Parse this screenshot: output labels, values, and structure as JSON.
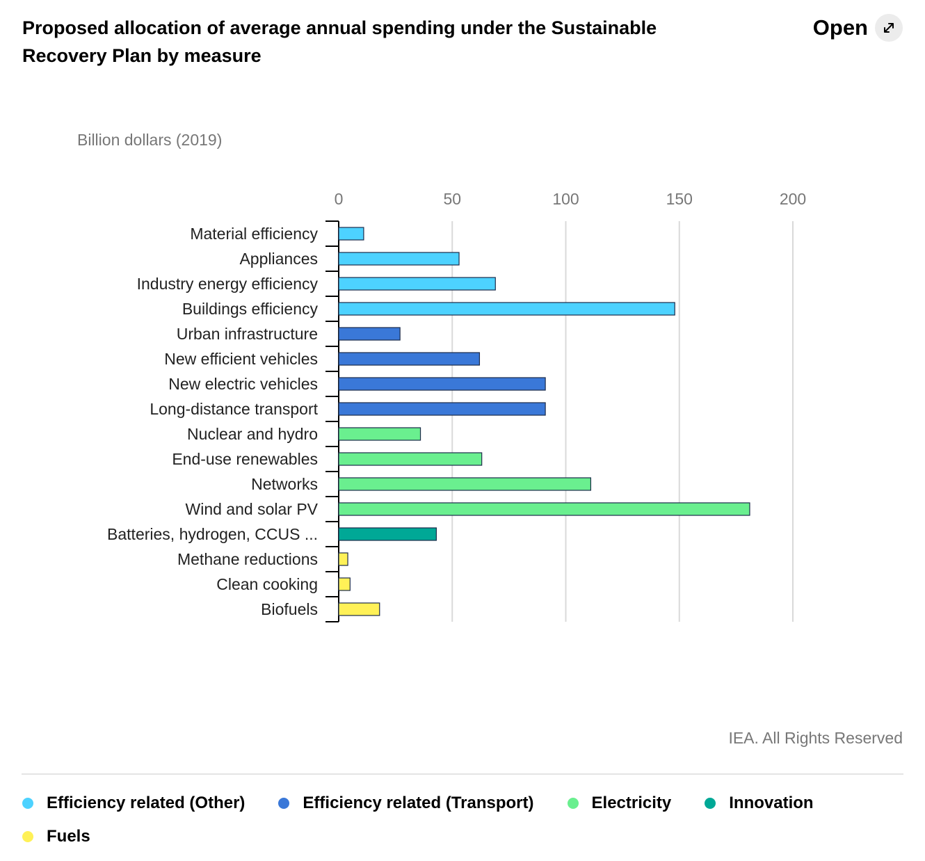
{
  "header": {
    "title": "Proposed allocation of average annual spending under the Sustainable Recovery Plan by measure",
    "open_label": "Open"
  },
  "credit": "IEA. All Rights Reserved",
  "chart_data": {
    "type": "bar",
    "orientation": "horizontal",
    "title": "Proposed allocation of average annual spending under the Sustainable Recovery Plan by measure",
    "ylabel": "Billion dollars (2019)",
    "xlim": [
      0,
      200
    ],
    "xticks": [
      "0",
      "50",
      "100",
      "150",
      "200"
    ],
    "grid": true,
    "legend_position": "bottom",
    "categories": [
      "Material efficiency",
      "Appliances",
      "Industry energy efficiency",
      "Buildings efficiency",
      "Urban infrastructure",
      "New efficient vehicles",
      "New electric vehicles",
      "Long-distance transport",
      "Nuclear and hydro",
      "End-use renewables",
      "Networks",
      "Wind and solar PV",
      "Batteries, hydrogen, CCUS ...",
      "Methane reductions",
      "Clean cooking",
      "Biofuels"
    ],
    "values": [
      11,
      53,
      69,
      148,
      27,
      62,
      91,
      91,
      36,
      63,
      111,
      181,
      43,
      4,
      5,
      18
    ],
    "groups": [
      0,
      0,
      0,
      0,
      1,
      1,
      1,
      1,
      2,
      2,
      2,
      2,
      3,
      4,
      4,
      4
    ],
    "series": [
      {
        "name": "Efficiency related (Other)",
        "color": "#4dd2ff"
      },
      {
        "name": "Efficiency related (Transport)",
        "color": "#3a78d8"
      },
      {
        "name": "Electricity",
        "color": "#6aef8f"
      },
      {
        "name": "Innovation",
        "color": "#00a896"
      },
      {
        "name": "Fuels",
        "color": "#fff157"
      }
    ]
  }
}
